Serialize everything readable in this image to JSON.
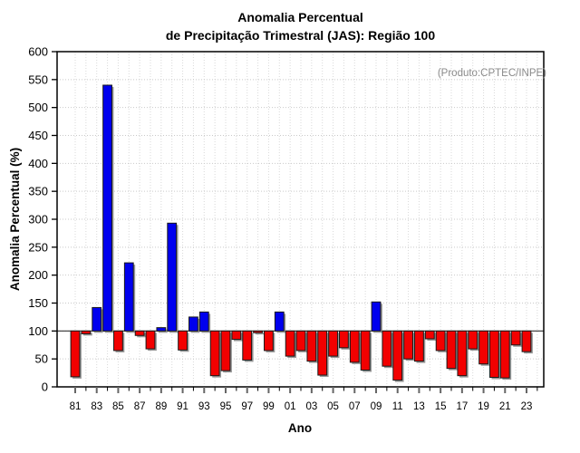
{
  "chart_data": {
    "type": "bar",
    "title_line1": "Anomalia Percentual",
    "title_line2": "de Precipitação Trimestral (JAS): Região 100",
    "ylabel": "Anomalia Percentual (%)",
    "xlabel": "Ano",
    "annotation": "(Produto:CPTEC/INPE)",
    "baseline": 100,
    "ylim": [
      0,
      600
    ],
    "ytick_step": 50,
    "ytick_labels": [
      "0",
      "50",
      "100",
      "150",
      "200",
      "250",
      "300",
      "350",
      "400",
      "450",
      "500",
      "550",
      "600"
    ],
    "xtick_labels": [
      "81",
      "83",
      "85",
      "87",
      "89",
      "91",
      "93",
      "95",
      "97",
      "99",
      "01",
      "03",
      "05",
      "07",
      "09",
      "11",
      "13",
      "15",
      "17",
      "19",
      "21",
      "23"
    ],
    "xaxis_years": [
      1981,
      2024
    ],
    "years": [
      1981,
      1982,
      1983,
      1984,
      1985,
      1986,
      1987,
      1988,
      1989,
      1990,
      1991,
      1992,
      1993,
      1994,
      1995,
      1996,
      1997,
      1998,
      1999,
      2000,
      2001,
      2002,
      2003,
      2004,
      2005,
      2006,
      2007,
      2008,
      2009,
      2010,
      2011,
      2012,
      2013,
      2014,
      2015,
      2016,
      2017,
      2018,
      2019,
      2020,
      2021,
      2022,
      2023
    ],
    "values": [
      18,
      95,
      142,
      540,
      65,
      222,
      92,
      68,
      106,
      293,
      66,
      125,
      134,
      20,
      29,
      85,
      48,
      97,
      65,
      134,
      55,
      65,
      46,
      21,
      55,
      70,
      44,
      30,
      152,
      37,
      12,
      50,
      46,
      86,
      65,
      33,
      20,
      68,
      41,
      17,
      16,
      75,
      63
    ],
    "grid": true,
    "legend": "none",
    "colors": {
      "above_baseline": "#0000ee",
      "below_baseline": "#f20000",
      "bar_outline": "#1a1a1a",
      "bar_shadow": "#999999",
      "grid_h": "#c9c9c9",
      "grid_v": "#d9d9d9",
      "axis": "#000000",
      "baseline_line": "#333333",
      "annotation_text": "#8a8a8a",
      "minor_tick": "#000000",
      "major_tick": "#666666"
    }
  }
}
